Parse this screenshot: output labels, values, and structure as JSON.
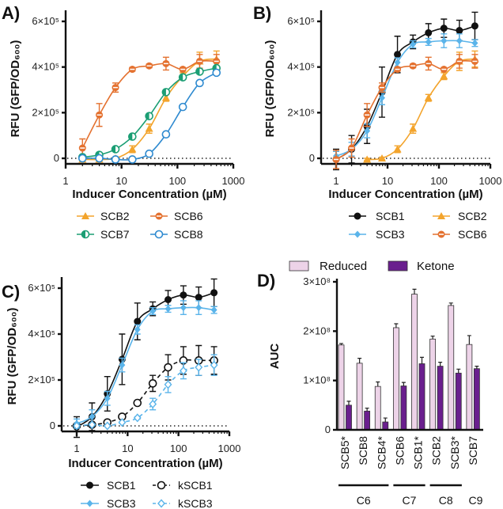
{
  "chart_data": [
    {
      "panel_label": "A)",
      "type": "line",
      "xlabel": "Inducer Concentration (µM)",
      "ylabel": "RFU (GFP/OD₆₀₀)",
      "x_scale": "log",
      "xlim": [
        1,
        1000
      ],
      "ylim": [
        0,
        600000
      ],
      "x_ticks": [
        "1",
        "10",
        "100",
        "1000"
      ],
      "y_ticks": [
        "0",
        "2×10⁵",
        "4×10⁵",
        "6×10⁵"
      ],
      "zero_line": "dotted",
      "legend": "bottom",
      "series": [
        {
          "name": "SCB2",
          "color": "#f3a42c",
          "marker": "triangle",
          "dashed": false,
          "x": [
            2,
            4,
            7.8,
            15.6,
            31.25,
            62.5,
            125,
            250,
            500
          ],
          "y": [
            -5000,
            -5000,
            0,
            40000,
            130000,
            265000,
            360000,
            425000,
            435000
          ],
          "err": [
            5000,
            5000,
            5000,
            15000,
            20000,
            15000,
            15000,
            40000,
            35000
          ]
        },
        {
          "name": "SCB6",
          "color": "#e4712f",
          "marker": "circle-split",
          "dashed": false,
          "x": [
            2,
            4,
            7.8,
            15.6,
            31.25,
            62.5,
            125,
            250,
            500
          ],
          "y": [
            45000,
            190000,
            310000,
            390000,
            405000,
            415000,
            390000,
            425000,
            425000
          ],
          "err": [
            40000,
            50000,
            20000,
            8000,
            8000,
            28000,
            8000,
            30000,
            30000
          ]
        },
        {
          "name": "SCB7",
          "color": "#1b9e74",
          "marker": "circle-half",
          "dashed": false,
          "x": [
            2,
            4,
            7.8,
            15.6,
            31.25,
            62.5,
            125,
            250,
            500
          ],
          "y": [
            5000,
            15000,
            40000,
            95000,
            185000,
            290000,
            355000,
            380000,
            395000
          ],
          "err": [
            4000,
            5000,
            6000,
            8000,
            8000,
            8000,
            8000,
            8000,
            8000
          ]
        },
        {
          "name": "SCB8",
          "color": "#2e8ad0",
          "marker": "circle-open",
          "dashed": false,
          "x": [
            2,
            4,
            7.8,
            15.6,
            31.25,
            62.5,
            125,
            250,
            500
          ],
          "y": [
            0,
            0,
            -5000,
            -5000,
            20000,
            105000,
            225000,
            330000,
            375000
          ],
          "err": [
            3000,
            3000,
            3000,
            3000,
            5000,
            6000,
            6000,
            6000,
            6000
          ]
        }
      ]
    },
    {
      "panel_label": "B)",
      "type": "line",
      "xlabel": "Inducer Concentration (µM)",
      "ylabel": "RFU (GFP/OD₆₀₀)",
      "x_scale": "log",
      "xlim": [
        0.5,
        1000
      ],
      "ylim": [
        0,
        600000
      ],
      "x_ticks": [
        "1",
        "10",
        "100",
        "1000"
      ],
      "y_ticks": [
        "0",
        "2×10⁵",
        "4×10⁵",
        "6×10⁵"
      ],
      "zero_line": "dotted",
      "legend": "bottom",
      "series": [
        {
          "name": "SCB1",
          "color": "#111111",
          "marker": "circle-filled",
          "dashed": false,
          "x": [
            1,
            2,
            4,
            7.8,
            15.6,
            31.25,
            62.5,
            125,
            250,
            500
          ],
          "y": [
            -5000,
            40000,
            140000,
            290000,
            455000,
            510000,
            550000,
            570000,
            560000,
            580000
          ],
          "err": [
            45000,
            60000,
            75000,
            110000,
            80000,
            30000,
            40000,
            40000,
            45000,
            60000
          ]
        },
        {
          "name": "SCB2",
          "color": "#f3a42c",
          "marker": "triangle",
          "dashed": false,
          "x": [
            4,
            7.8,
            15.6,
            31.25,
            62.5,
            125,
            250,
            500
          ],
          "y": [
            -5000,
            0,
            40000,
            130000,
            265000,
            360000,
            425000,
            435000
          ],
          "err": [
            5000,
            5000,
            15000,
            20000,
            15000,
            15000,
            40000,
            35000
          ]
        },
        {
          "name": "SCB3",
          "color": "#5ab4ea",
          "marker": "diamond-filled",
          "dashed": false,
          "x": [
            1,
            2,
            4,
            7.8,
            15.6,
            31.25,
            62.5,
            125,
            250,
            500
          ],
          "y": [
            10000,
            40000,
            120000,
            265000,
            420000,
            500000,
            510000,
            515000,
            515000,
            505000
          ],
          "err": [
            20000,
            30000,
            30000,
            30000,
            20000,
            15000,
            15000,
            30000,
            30000,
            15000
          ]
        },
        {
          "name": "SCB6",
          "color": "#e4712f",
          "marker": "circle-split",
          "dashed": false,
          "x": [
            1,
            2,
            4,
            7.8,
            15.6,
            31.25,
            62.5,
            125,
            250,
            500
          ],
          "y": [
            -5000,
            45000,
            190000,
            310000,
            390000,
            405000,
            415000,
            390000,
            425000,
            425000
          ],
          "err": [
            40000,
            40000,
            50000,
            20000,
            8000,
            8000,
            28000,
            8000,
            30000,
            30000
          ]
        }
      ]
    },
    {
      "panel_label": "C)",
      "type": "line",
      "xlabel": "Inducer Concentration (µM)",
      "ylabel": "RFU (GFP/OD₆₀₀)",
      "x_scale": "log",
      "xlim": [
        0.5,
        1000
      ],
      "ylim": [
        0,
        600000
      ],
      "x_ticks": [
        "1",
        "10",
        "100",
        "1000"
      ],
      "y_ticks": [
        "0",
        "2×10⁵",
        "4×10⁵",
        "6×10⁵"
      ],
      "zero_line": "dotted",
      "legend": "bottom",
      "series": [
        {
          "name": "SCB1",
          "color": "#111111",
          "marker": "circle-filled",
          "dashed": false,
          "x": [
            1,
            2,
            4,
            7.8,
            15.6,
            31.25,
            62.5,
            125,
            250,
            500
          ],
          "y": [
            -5000,
            40000,
            140000,
            290000,
            455000,
            510000,
            550000,
            570000,
            560000,
            580000
          ],
          "err": [
            45000,
            60000,
            75000,
            110000,
            80000,
            30000,
            40000,
            40000,
            45000,
            60000
          ]
        },
        {
          "name": "kSCB1",
          "color": "#111111",
          "marker": "circle-open",
          "dashed": true,
          "x": [
            1,
            2,
            4,
            7.8,
            15.6,
            31.25,
            62.5,
            125,
            250,
            500
          ],
          "y": [
            0,
            5000,
            15000,
            40000,
            100000,
            185000,
            255000,
            285000,
            285000,
            285000
          ],
          "err": [
            5000,
            5000,
            5000,
            5000,
            8000,
            35000,
            55000,
            60000,
            65000,
            60000
          ]
        },
        {
          "name": "SCB3",
          "color": "#5ab4ea",
          "marker": "diamond-filled",
          "dashed": false,
          "x": [
            1,
            2,
            4,
            7.8,
            15.6,
            31.25,
            62.5,
            125,
            250,
            500
          ],
          "y": [
            10000,
            40000,
            120000,
            265000,
            420000,
            500000,
            510000,
            515000,
            515000,
            505000
          ],
          "err": [
            20000,
            30000,
            30000,
            30000,
            20000,
            15000,
            15000,
            30000,
            30000,
            15000
          ]
        },
        {
          "name": "kSCB3",
          "color": "#5ab4ea",
          "marker": "diamond-open",
          "dashed": true,
          "x": [
            1,
            2,
            4,
            7.8,
            15.6,
            31.25,
            62.5,
            125,
            250,
            500
          ],
          "y": [
            0,
            5000,
            0,
            15000,
            35000,
            95000,
            180000,
            240000,
            255000,
            265000
          ],
          "err": [
            3000,
            3000,
            3000,
            3000,
            5000,
            25000,
            35000,
            35000,
            35000,
            45000
          ]
        }
      ]
    },
    {
      "panel_label": "D)",
      "type": "bar",
      "ylabel": "AUC",
      "ylim": [
        0,
        300000000
      ],
      "y_ticks": [
        "0",
        "1×10⁸",
        "2×10⁸",
        "3×10⁸"
      ],
      "legend": "top",
      "categories": [
        "SCB5*",
        "SCB8",
        "SCB4*",
        "SCB6",
        "SCB1*",
        "SCB2",
        "SCB3*",
        "SCB7"
      ],
      "groups": [
        {
          "label": "C6",
          "span": 3,
          "underline": true
        },
        {
          "label": "C7",
          "span": 2,
          "underline": true
        },
        {
          "label": "C8",
          "span": 2,
          "underline": true
        },
        {
          "label": "C9",
          "span": 1,
          "underline": false
        }
      ],
      "series": [
        {
          "name": "Reduced",
          "color": "#edd3e8",
          "values": [
            172000000,
            135000000,
            88000000,
            207000000,
            275000000,
            184000000,
            252000000,
            173000000
          ],
          "err": [
            3000000,
            10000000,
            9000000,
            8000000,
            10000000,
            6000000,
            5000000,
            18000000
          ]
        },
        {
          "name": "Ketone",
          "color": "#6a1f8e",
          "values": [
            50000000,
            38000000,
            16000000,
            89000000,
            134000000,
            129000000,
            115000000,
            124000000
          ],
          "err": [
            8000000,
            6000000,
            8000000,
            7000000,
            13000000,
            8000000,
            8000000,
            5000000
          ]
        }
      ]
    }
  ]
}
